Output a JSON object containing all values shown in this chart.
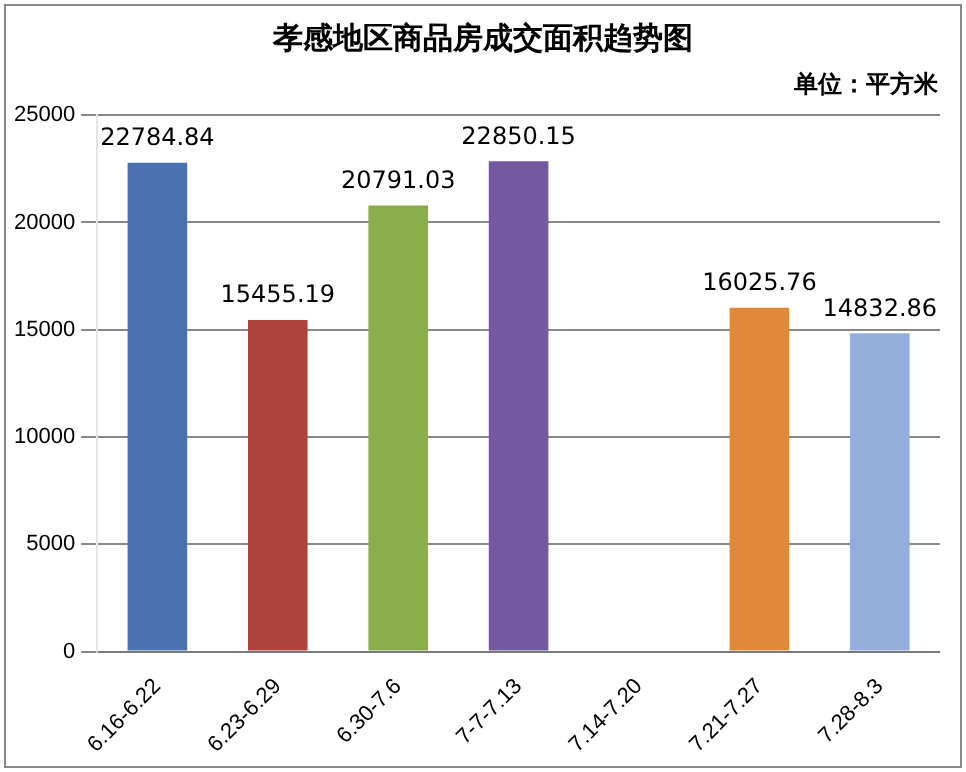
{
  "chart_data": {
    "type": "bar",
    "title": "孝感地区商品房成交面积趋势图",
    "annotations": [
      "单位：平方米"
    ],
    "categories": [
      "6.16-6.22",
      "6.23-6.29",
      "6.30-7.6",
      "7-7-7.13",
      "7.14-7.20",
      "7.21-7.27",
      "7.28-8.3"
    ],
    "values": [
      22784.84,
      15455.19,
      20791.03,
      22850.15,
      null,
      16025.76,
      14832.86
    ],
    "colors": [
      "#4a72b0",
      "#b04340",
      "#8aae4a",
      "#7458a0",
      "#4bacc6",
      "#e0893a",
      "#94aedb"
    ],
    "ylim": [
      0,
      25000
    ],
    "yticks": [
      0,
      5000,
      10000,
      15000,
      20000,
      25000
    ],
    "grid": "y",
    "data_labels": true
  }
}
